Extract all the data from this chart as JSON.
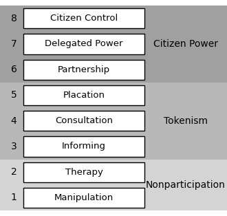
{
  "rungs": [
    {
      "level": 1,
      "label": "Manipulation"
    },
    {
      "level": 2,
      "label": "Therapy"
    },
    {
      "level": 3,
      "label": "Informing"
    },
    {
      "level": 4,
      "label": "Consultation"
    },
    {
      "level": 5,
      "label": "Placation"
    },
    {
      "level": 6,
      "label": "Partnership"
    },
    {
      "level": 7,
      "label": "Delegated Power"
    },
    {
      "level": 8,
      "label": "Citizen Control"
    }
  ],
  "groups": [
    {
      "label": "Nonparticipation",
      "levels": [
        1,
        2
      ],
      "bg_color": "#d4d4d4"
    },
    {
      "label": "Tokenism",
      "levels": [
        3,
        4,
        5
      ],
      "bg_color": "#b8b8b8"
    },
    {
      "label": "Citizen Power",
      "levels": [
        6,
        7,
        8
      ],
      "bg_color": "#a0a0a0"
    }
  ],
  "fig_bg": "#ffffff",
  "box_bg": "#ffffff",
  "box_edge": "#000000",
  "label_color": "#000000",
  "number_color": "#000000",
  "group_label_color": "#000000",
  "font_size_box": 9.5,
  "font_size_num": 10,
  "font_size_group": 10
}
